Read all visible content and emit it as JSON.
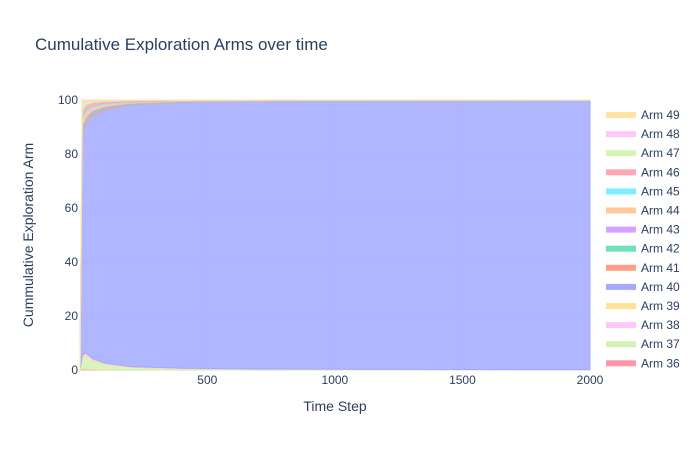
{
  "chart_data": {
    "type": "area",
    "stacked": true,
    "normalized_percent": true,
    "title": "Cumulative Exploration Arms over time",
    "xlabel": "Time Step",
    "ylabel": "Cummulative Exploration Arm",
    "xlim": [
      1,
      2000
    ],
    "ylim": [
      0,
      100
    ],
    "x_ticks": [
      500,
      1000,
      1500,
      2000
    ],
    "y_ticks": [
      0,
      20,
      40,
      60,
      80,
      100
    ],
    "grid": true,
    "legend_position": "right",
    "x": [
      1,
      10,
      25,
      50,
      100,
      200,
      400,
      700,
      1000,
      1500,
      2000
    ],
    "series": [
      {
        "name": "Arm 36",
        "color": "#FF97AB",
        "values": [
          0,
          0.4,
          0.3,
          0.2,
          0.1,
          0.05,
          0.03,
          0.02,
          0.02,
          0.01,
          0.01
        ]
      },
      {
        "name": "Arm 37",
        "color": "#D4F2B2",
        "values": [
          0,
          4,
          5,
          3.5,
          2,
          1,
          0.5,
          0.3,
          0.2,
          0.15,
          0.1
        ]
      },
      {
        "name": "Arm 38",
        "color": "#FFC8F6",
        "values": [
          0,
          0.6,
          0.5,
          0.3,
          0.2,
          0.1,
          0.05,
          0.03,
          0.02,
          0.02,
          0.01
        ]
      },
      {
        "name": "Arm 39",
        "color": "#FFE399",
        "values": [
          0,
          0.6,
          0.5,
          0.3,
          0.2,
          0.1,
          0.05,
          0.03,
          0.02,
          0.02,
          0.01
        ]
      },
      {
        "name": "Arm 40",
        "color": "#A2A9FF",
        "values": [
          0,
          82,
          86,
          91,
          95,
          97.6,
          98.8,
          99.3,
          99.5,
          99.6,
          99.7
        ]
      },
      {
        "name": "Arm 41",
        "color": "#FF9E87",
        "values": [
          0,
          1,
          0.8,
          0.6,
          0.4,
          0.2,
          0.1,
          0.05,
          0.04,
          0.03,
          0.02
        ]
      },
      {
        "name": "Arm 42",
        "color": "#6FE0BB",
        "values": [
          0,
          1,
          0.8,
          0.6,
          0.4,
          0.2,
          0.1,
          0.05,
          0.04,
          0.03,
          0.02
        ]
      },
      {
        "name": "Arm 43",
        "color": "#D5A2FF",
        "values": [
          0,
          1,
          0.8,
          0.6,
          0.4,
          0.2,
          0.1,
          0.05,
          0.04,
          0.03,
          0.02
        ]
      },
      {
        "name": "Arm 44",
        "color": "#FFC999",
        "values": [
          0,
          2.4,
          1.8,
          1.2,
          0.7,
          0.35,
          0.15,
          0.08,
          0.06,
          0.04,
          0.03
        ]
      },
      {
        "name": "Arm 45",
        "color": "#7DEEFF",
        "values": [
          0,
          1,
          0.8,
          0.6,
          0.4,
          0.2,
          0.1,
          0.05,
          0.04,
          0.03,
          0.02
        ]
      },
      {
        "name": "Arm 46",
        "color": "#FFA8B5",
        "values": [
          0,
          2.4,
          1.8,
          1.2,
          0.7,
          0.35,
          0.15,
          0.08,
          0.06,
          0.04,
          0.03
        ]
      },
      {
        "name": "Arm 47",
        "color": "#D6F4B5",
        "values": [
          0,
          2.6,
          1.2,
          0.5,
          0.3,
          0.15,
          0.06,
          0.04,
          0.02,
          0.01,
          0.01
        ]
      },
      {
        "name": "Arm 48",
        "color": "#FFC8F6",
        "values": [
          0,
          0.5,
          0.3,
          0.2,
          0.1,
          0.05,
          0.03,
          0.02,
          0.01,
          0.01,
          0.01
        ]
      },
      {
        "name": "Arm 49",
        "color": "#FFE3A3",
        "values": [
          0,
          0.5,
          0.3,
          0.2,
          0.1,
          0.05,
          0.03,
          0.02,
          0.01,
          0.01,
          0.01
        ]
      }
    ]
  }
}
